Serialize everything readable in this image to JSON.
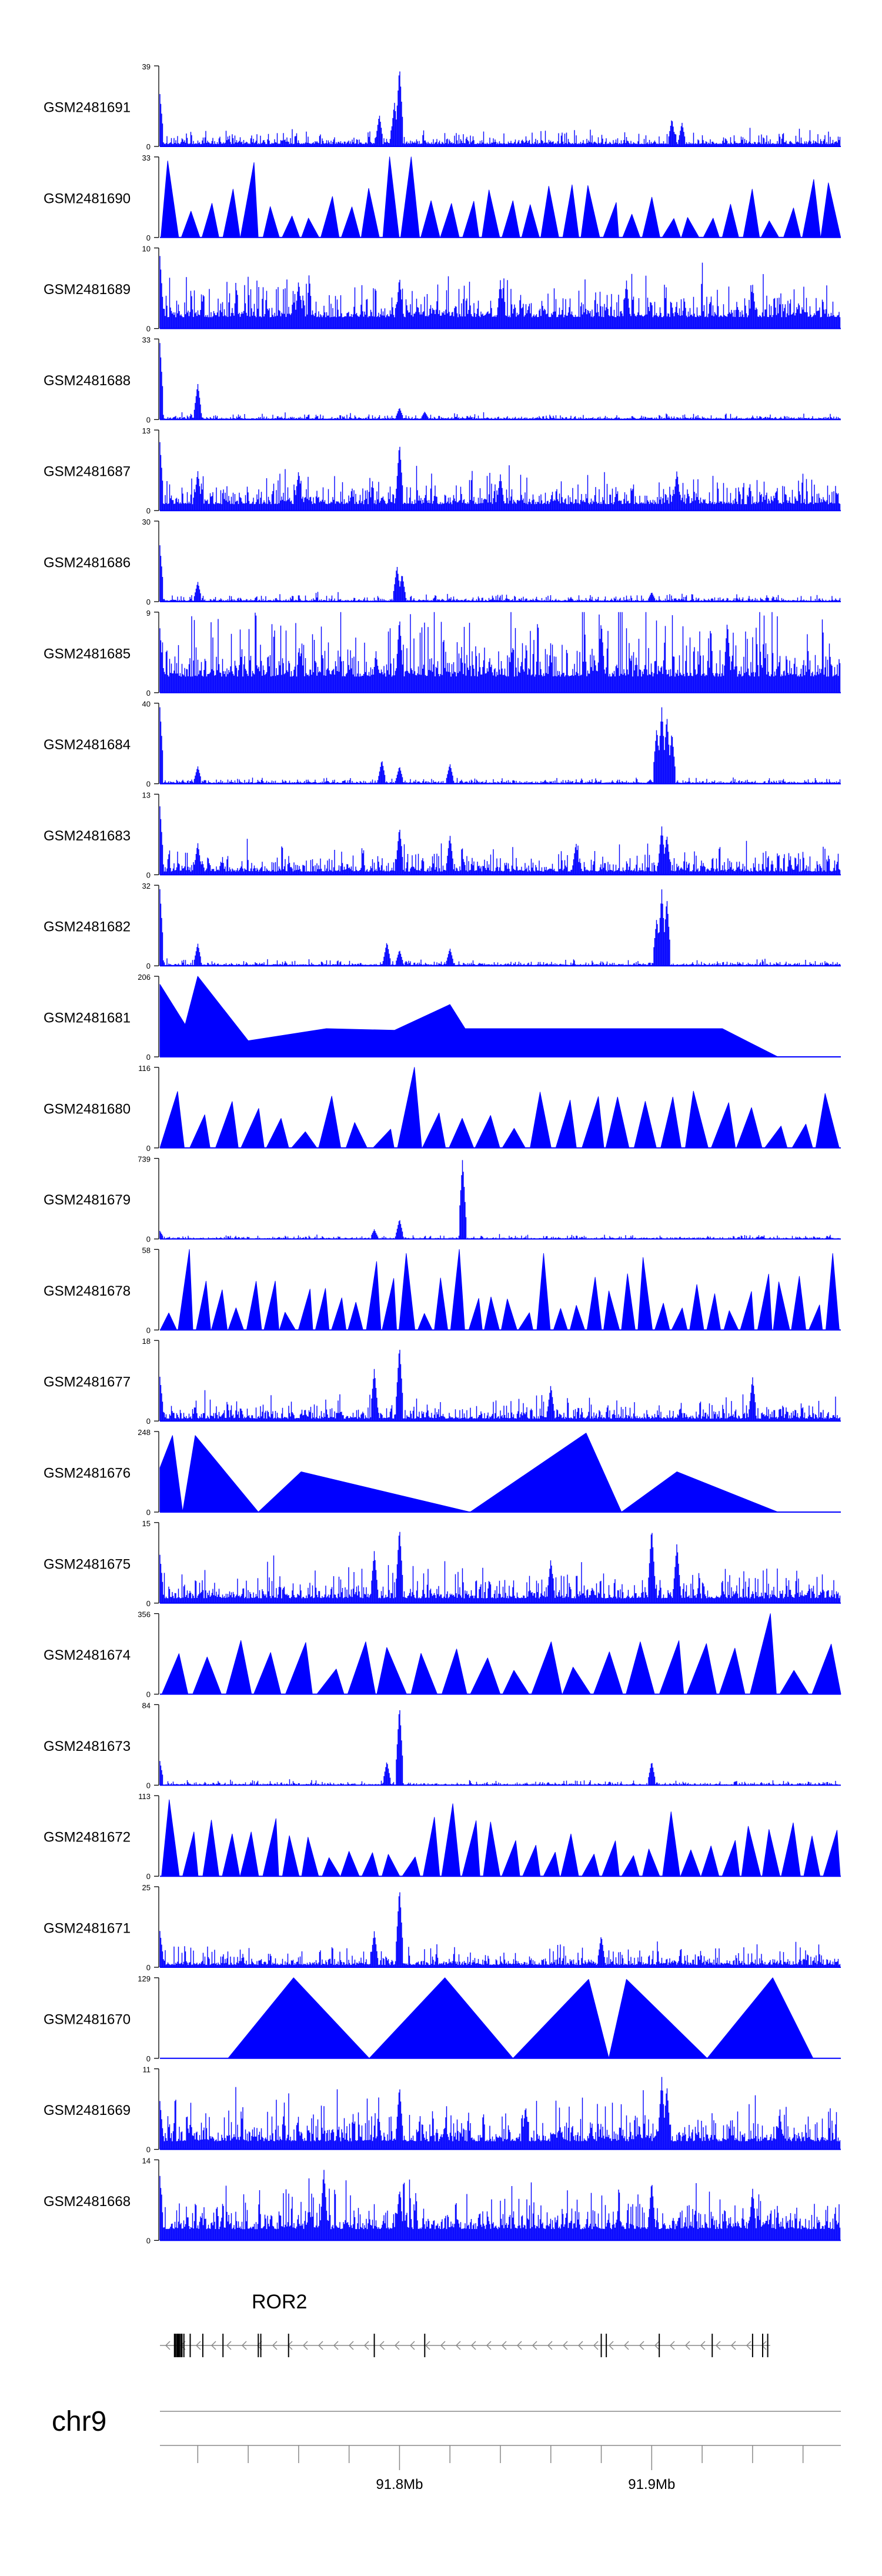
{
  "chart_data": {
    "type": "area",
    "title": "",
    "colors": {
      "signal": "#0000ff",
      "axis": "#000000",
      "gene": "#000000",
      "ideogram": "#888888"
    },
    "x_axis": {
      "chromosome": "chr9",
      "xlim_mb": [
        91.705,
        91.975
      ],
      "major_ticks": [
        91.8,
        91.9
      ],
      "tick_labels": [
        "91.8Mb",
        "91.9Mb"
      ],
      "minor_tick_step_mb": 0.02
    },
    "tracks": [
      {
        "name": "GSM2481691",
        "ymax": 39,
        "ymin": 0,
        "style": "bars",
        "baseline": 0.03,
        "noise": 0.16,
        "peaks": [
          [
            91.705,
            0.65
          ],
          [
            91.8,
            1.0
          ],
          [
            91.798,
            0.55
          ],
          [
            91.792,
            0.4
          ],
          [
            91.908,
            0.35
          ],
          [
            91.912,
            0.3
          ]
        ]
      },
      {
        "name": "GSM2481690",
        "ymax": 33,
        "ymin": 0,
        "style": "triangles",
        "peaks": [
          [
            91.705,
            0.95
          ],
          [
            91.735,
            0.6
          ],
          [
            91.742,
            0.93
          ],
          [
            91.8,
            1.0
          ],
          [
            91.803,
            0.82
          ],
          [
            91.83,
            0.45
          ],
          [
            91.9,
            0.5
          ],
          [
            91.94,
            0.6
          ]
        ],
        "tri_count": 34
      },
      {
        "name": "GSM2481689",
        "ymax": 10,
        "ymin": 0,
        "style": "bars",
        "baseline": 0.14,
        "noise": 0.5,
        "peaks": [
          [
            91.705,
            0.9
          ],
          [
            91.76,
            0.6
          ],
          [
            91.8,
            0.65
          ],
          [
            91.84,
            0.6
          ],
          [
            91.89,
            0.6
          ],
          [
            91.94,
            0.55
          ]
        ]
      },
      {
        "name": "GSM2481688",
        "ymax": 33,
        "ymin": 0,
        "style": "bars",
        "baseline": 0.01,
        "noise": 0.06,
        "peaks": [
          [
            91.705,
            0.95
          ],
          [
            91.72,
            0.45
          ],
          [
            91.8,
            0.15
          ],
          [
            91.81,
            0.1
          ]
        ]
      },
      {
        "name": "GSM2481687",
        "ymax": 13,
        "ymin": 0,
        "style": "bars",
        "baseline": 0.08,
        "noise": 0.38,
        "peaks": [
          [
            91.705,
            0.85
          ],
          [
            91.8,
            0.85
          ],
          [
            91.72,
            0.5
          ],
          [
            91.76,
            0.5
          ],
          [
            91.84,
            0.45
          ],
          [
            91.91,
            0.5
          ]
        ]
      },
      {
        "name": "GSM2481686",
        "ymax": 30,
        "ymin": 0,
        "style": "bars",
        "baseline": 0.01,
        "noise": 0.08,
        "peaks": [
          [
            91.705,
            0.7
          ],
          [
            91.72,
            0.25
          ],
          [
            91.799,
            0.45
          ],
          [
            91.801,
            0.35
          ],
          [
            91.9,
            0.12
          ]
        ]
      },
      {
        "name": "GSM2481685",
        "ymax": 9,
        "ymin": 0,
        "style": "bars",
        "baseline": 0.2,
        "noise": 0.75,
        "peaks": [
          [
            91.705,
            0.8
          ],
          [
            91.8,
            0.95
          ],
          [
            91.88,
            0.9
          ],
          [
            91.93,
            0.9
          ]
        ]
      },
      {
        "name": "GSM2481684",
        "ymax": 40,
        "ymin": 0,
        "style": "bars",
        "baseline": 0.01,
        "noise": 0.06,
        "peaks": [
          [
            91.705,
            0.95
          ],
          [
            91.72,
            0.22
          ],
          [
            91.793,
            0.3
          ],
          [
            91.8,
            0.22
          ],
          [
            91.82,
            0.25
          ],
          [
            91.904,
            0.95
          ],
          [
            91.906,
            0.85
          ],
          [
            91.902,
            0.7
          ],
          [
            91.908,
            0.65
          ]
        ]
      },
      {
        "name": "GSM2481683",
        "ymax": 13,
        "ymin": 0,
        "style": "bars",
        "baseline": 0.04,
        "noise": 0.3,
        "peaks": [
          [
            91.705,
            0.85
          ],
          [
            91.72,
            0.4
          ],
          [
            91.8,
            0.6
          ],
          [
            91.82,
            0.5
          ],
          [
            91.904,
            0.6
          ],
          [
            91.906,
            0.5
          ],
          [
            91.87,
            0.4
          ]
        ]
      },
      {
        "name": "GSM2481682",
        "ymax": 32,
        "ymin": 0,
        "style": "bars",
        "baseline": 0.01,
        "noise": 0.06,
        "peaks": [
          [
            91.705,
            0.95
          ],
          [
            91.72,
            0.28
          ],
          [
            91.795,
            0.3
          ],
          [
            91.8,
            0.2
          ],
          [
            91.82,
            0.22
          ],
          [
            91.904,
            0.95
          ],
          [
            91.906,
            0.85
          ],
          [
            91.902,
            0.6
          ]
        ]
      },
      {
        "name": "GSM2481681",
        "ymax": 206,
        "ymin": 0,
        "style": "triangles",
        "peaks": [
          [
            91.705,
            0.9
          ],
          [
            91.715,
            0.4
          ],
          [
            91.72,
            1.0
          ],
          [
            91.74,
            0.2
          ],
          [
            91.771,
            0.35
          ],
          [
            91.798,
            0.33
          ],
          [
            91.82,
            0.65
          ],
          [
            91.826,
            0.35
          ],
          [
            91.854,
            0.35
          ],
          [
            91.885,
            0.35
          ],
          [
            91.928,
            0.35
          ],
          [
            91.95,
            0.0
          ]
        ],
        "tri_count": 0
      },
      {
        "name": "GSM2481680",
        "ymax": 116,
        "ymin": 0,
        "style": "triangles",
        "peaks": [
          [
            91.705,
            0.7
          ],
          [
            91.72,
            0.35
          ],
          [
            91.8,
            1.0
          ],
          [
            91.92,
            0.7
          ],
          [
            91.94,
            0.5
          ]
        ],
        "tri_count": 26
      },
      {
        "name": "GSM2481679",
        "ymax": 739,
        "ymin": 0,
        "style": "bars",
        "baseline": 0.005,
        "noise": 0.04,
        "peaks": [
          [
            91.825,
            1.0
          ],
          [
            91.8,
            0.25
          ],
          [
            91.79,
            0.12
          ],
          [
            91.705,
            0.1
          ]
        ]
      },
      {
        "name": "GSM2481678",
        "ymax": 58,
        "ymin": 0,
        "style": "triangles",
        "peaks": [
          [
            91.713,
            1.0
          ],
          [
            91.825,
            1.0
          ],
          [
            91.79,
            0.85
          ],
          [
            91.8,
            0.95
          ],
          [
            91.86,
            0.95
          ],
          [
            91.972,
            0.95
          ],
          [
            91.9,
            0.9
          ]
        ],
        "tri_count": 40
      },
      {
        "name": "GSM2481677",
        "ymax": 18,
        "ymin": 0,
        "style": "bars",
        "baseline": 0.03,
        "noise": 0.25,
        "peaks": [
          [
            91.705,
            0.55
          ],
          [
            91.8,
            0.95
          ],
          [
            91.79,
            0.65
          ],
          [
            91.94,
            0.55
          ],
          [
            91.86,
            0.45
          ]
        ]
      },
      {
        "name": "GSM2481676",
        "ymax": 248,
        "ymin": 0,
        "style": "triangles",
        "peaks": [
          [
            91.705,
            0.55
          ],
          [
            91.71,
            0.95
          ],
          [
            91.714,
            0.0
          ],
          [
            91.719,
            0.95
          ],
          [
            91.744,
            0.0
          ],
          [
            91.761,
            0.5
          ],
          [
            91.828,
            0.0
          ],
          [
            91.874,
            0.98
          ],
          [
            91.888,
            0.0
          ],
          [
            91.91,
            0.5
          ],
          [
            91.95,
            0.0
          ]
        ],
        "tri_count": 0
      },
      {
        "name": "GSM2481675",
        "ymax": 15,
        "ymin": 0,
        "style": "bars",
        "baseline": 0.06,
        "noise": 0.35,
        "peaks": [
          [
            91.705,
            0.6
          ],
          [
            91.8,
            0.95
          ],
          [
            91.79,
            0.65
          ],
          [
            91.9,
            0.95
          ],
          [
            91.91,
            0.75
          ],
          [
            91.86,
            0.55
          ]
        ]
      },
      {
        "name": "GSM2481674",
        "ymax": 356,
        "ymin": 0,
        "style": "triangles",
        "peaks": [
          [
            91.79,
            0.65
          ],
          [
            91.83,
            0.45
          ],
          [
            91.86,
            0.65
          ],
          [
            91.89,
            0.65
          ],
          [
            91.94,
            1.0
          ],
          [
            91.95,
            0.3
          ]
        ],
        "tri_count": 22
      },
      {
        "name": "GSM2481673",
        "ymax": 84,
        "ymin": 0,
        "style": "bars",
        "baseline": 0.005,
        "noise": 0.05,
        "peaks": [
          [
            91.8,
            1.0
          ],
          [
            91.795,
            0.3
          ],
          [
            91.705,
            0.3
          ],
          [
            91.9,
            0.3
          ]
        ]
      },
      {
        "name": "GSM2481672",
        "ymax": 113,
        "ymin": 0,
        "style": "triangles",
        "peaks": [
          [
            91.705,
            0.95
          ],
          [
            91.822,
            0.9
          ],
          [
            91.91,
            0.8
          ],
          [
            91.72,
            0.55
          ],
          [
            91.96,
            0.5
          ]
        ],
        "tri_count": 34
      },
      {
        "name": "GSM2481671",
        "ymax": 25,
        "ymin": 0,
        "style": "bars",
        "baseline": 0.03,
        "noise": 0.22,
        "peaks": [
          [
            91.8,
            1.0
          ],
          [
            91.705,
            0.45
          ],
          [
            91.79,
            0.45
          ],
          [
            91.88,
            0.4
          ]
        ]
      },
      {
        "name": "GSM2481670",
        "ymax": 129,
        "ymin": 0,
        "style": "triangles",
        "peaks": [
          [
            91.732,
            0.0
          ],
          [
            91.758,
            1.0
          ],
          [
            91.788,
            0.0
          ],
          [
            91.818,
            1.0
          ],
          [
            91.845,
            0.0
          ],
          [
            91.875,
            0.98
          ],
          [
            91.883,
            0.0
          ],
          [
            91.89,
            0.98
          ],
          [
            91.922,
            0.0
          ],
          [
            91.948,
            1.0
          ],
          [
            91.964,
            0.0
          ]
        ],
        "tri_count": 0
      },
      {
        "name": "GSM2481669",
        "ymax": 11,
        "ymin": 0,
        "style": "bars",
        "baseline": 0.1,
        "noise": 0.5,
        "peaks": [
          [
            91.705,
            0.6
          ],
          [
            91.8,
            0.8
          ],
          [
            91.904,
            0.9
          ],
          [
            91.906,
            0.8
          ],
          [
            91.85,
            0.55
          ]
        ]
      },
      {
        "name": "GSM2481668",
        "ymax": 14,
        "ymin": 0,
        "style": "bars",
        "baseline": 0.14,
        "noise": 0.55,
        "peaks": [
          [
            91.705,
            0.8
          ],
          [
            91.77,
            0.9
          ],
          [
            91.8,
            0.65
          ],
          [
            91.9,
            0.75
          ],
          [
            91.94,
            0.65
          ]
        ]
      }
    ],
    "gene": {
      "name": "ROR2",
      "start_mb": 91.705,
      "end_mb": 91.947,
      "strand": "-",
      "exons_mb": [
        91.711,
        91.712,
        91.7125,
        91.7135,
        91.7145,
        91.717,
        91.722,
        91.73,
        91.744,
        91.745,
        91.756,
        91.79,
        91.81,
        91.88,
        91.882,
        91.903,
        91.924,
        91.94,
        91.944,
        91.946
      ]
    }
  }
}
